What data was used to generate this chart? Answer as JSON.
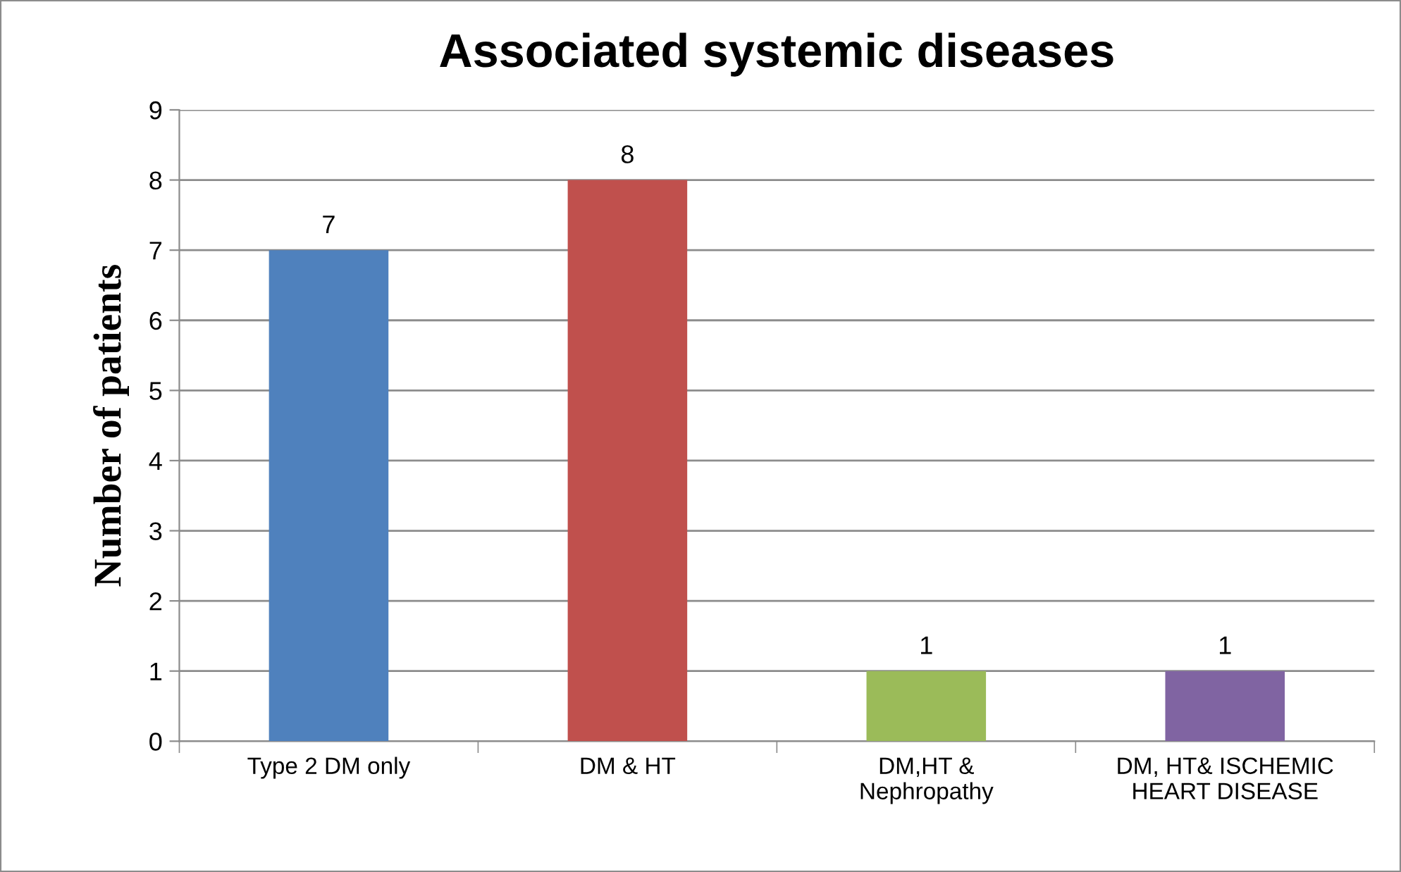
{
  "chart_data": {
    "type": "bar",
    "title": "Associated systemic diseases",
    "ylabel": "Number of patients",
    "categories": [
      "Type 2 DM only",
      "DM & HT",
      "DM,HT &\nNephropathy",
      "DM, HT& ISCHEMIC\nHEART DISEASE"
    ],
    "values": [
      7,
      8,
      1,
      1
    ],
    "colors": [
      "#4f81bd",
      "#c0504d",
      "#9bbb59",
      "#8064a2"
    ],
    "ylim": [
      0,
      9
    ],
    "yticks": [
      0,
      1,
      2,
      3,
      4,
      5,
      6,
      7,
      8,
      9
    ],
    "grid": "y",
    "data_labels": true,
    "legend": false
  }
}
